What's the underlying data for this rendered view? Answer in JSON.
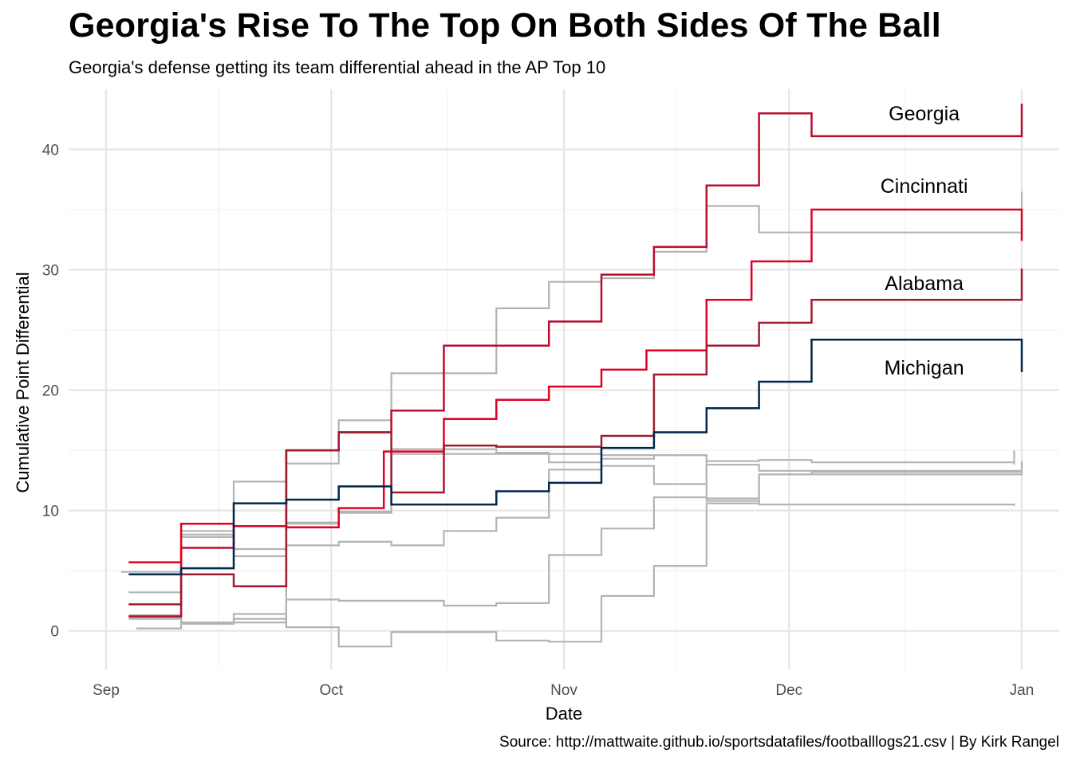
{
  "title": "Georgia's Rise To The Top On Both Sides Of The Ball",
  "subtitle": "Georgia's defense getting its team differential ahead in the AP Top 10",
  "caption": "Source: http://mattwaite.github.io/sportsdatafiles/footballlogs21.csv | By Kirk Rangel",
  "chart_data": {
    "type": "line",
    "step": true,
    "xlabel": "Date",
    "ylabel": "Cumulative Point Differential",
    "x_ticks": [
      {
        "date": "2021-09-01",
        "label": "Sep"
      },
      {
        "date": "2021-10-01",
        "label": "Oct"
      },
      {
        "date": "2021-11-01",
        "label": "Nov"
      },
      {
        "date": "2021-12-01",
        "label": "Dec"
      },
      {
        "date": "2022-01-01",
        "label": "Jan"
      }
    ],
    "y_ticks": [
      0,
      10,
      20,
      30,
      40
    ],
    "xlim": [
      "2021-08-27",
      "2022-01-06"
    ],
    "ylim": [
      -3.2,
      45
    ],
    "grid": true,
    "legend": "none",
    "highlight_series": [
      {
        "name": "Georgia",
        "color": "#BA0C2F",
        "dates": [
          "2021-09-04",
          "2021-09-11",
          "2021-09-18",
          "2021-09-25",
          "2021-10-02",
          "2021-10-09",
          "2021-10-16",
          "2021-10-30",
          "2021-11-06",
          "2021-11-13",
          "2021-11-20",
          "2021-11-27",
          "2021-12-04",
          "2022-01-01",
          "2022-01-01"
        ],
        "values": [
          1.2,
          6.9,
          8.7,
          15.0,
          16.5,
          18.3,
          23.7,
          25.7,
          29.6,
          31.9,
          37.0,
          43.0,
          41.1,
          41.1,
          43.8
        ]
      },
      {
        "name": "Cincinnati",
        "color": "#E00122",
        "dates": [
          "2021-09-04",
          "2021-09-11",
          "2021-09-18",
          "2021-09-25",
          "2021-10-02",
          "2021-10-08",
          "2021-10-16",
          "2021-10-23",
          "2021-10-30",
          "2021-11-06",
          "2021-11-12",
          "2021-11-20",
          "2021-11-26",
          "2021-12-04",
          "2022-01-01",
          "2022-01-01"
        ],
        "values": [
          5.7,
          8.9,
          8.7,
          8.6,
          10.2,
          14.9,
          17.6,
          19.2,
          20.3,
          21.7,
          23.3,
          27.5,
          30.7,
          35.0,
          35.0,
          32.4
        ]
      },
      {
        "name": "Alabama",
        "color": "#9E1B32",
        "dates": [
          "2021-09-04",
          "2021-09-11",
          "2021-09-18",
          "2021-09-25",
          "2021-10-02",
          "2021-10-09",
          "2021-10-16",
          "2021-10-23",
          "2021-11-06",
          "2021-11-13",
          "2021-11-20",
          "2021-11-27",
          "2021-12-04",
          "2022-01-01",
          "2022-01-01"
        ],
        "values": [
          2.2,
          4.7,
          3.7,
          15.0,
          16.5,
          11.5,
          15.4,
          15.3,
          16.2,
          21.3,
          23.7,
          25.6,
          27.5,
          27.5,
          30.1
        ]
      },
      {
        "name": "Michigan",
        "color": "#00274C",
        "dates": [
          "2021-09-04",
          "2021-09-11",
          "2021-09-18",
          "2021-09-25",
          "2021-10-02",
          "2021-10-09",
          "2021-10-23",
          "2021-10-30",
          "2021-11-06",
          "2021-11-13",
          "2021-11-20",
          "2021-11-27",
          "2021-12-04",
          "2022-01-01",
          "2022-01-01"
        ],
        "values": [
          4.7,
          5.2,
          10.6,
          10.9,
          12.0,
          10.5,
          11.6,
          12.3,
          15.2,
          16.5,
          18.5,
          20.7,
          24.2,
          24.2,
          21.5
        ]
      }
    ],
    "other_series_color": "#b3b3b3",
    "other_series": [
      {
        "dates": [
          "2021-09-04",
          "2021-09-11",
          "2021-09-18",
          "2021-09-25",
          "2021-10-02",
          "2021-10-09",
          "2021-10-16",
          "2021-10-23",
          "2021-10-30",
          "2021-11-06",
          "2021-11-13",
          "2021-11-20",
          "2021-11-27",
          "2022-01-01",
          "2022-01-01"
        ],
        "values": [
          1.0,
          8.0,
          12.4,
          13.9,
          17.5,
          21.4,
          21.4,
          26.8,
          29.0,
          29.3,
          31.5,
          35.3,
          33.1,
          33.1,
          36.5
        ]
      },
      {
        "dates": [
          "2021-09-03",
          "2021-09-11",
          "2021-09-18",
          "2021-09-25",
          "2021-10-02",
          "2021-10-09",
          "2021-10-16",
          "2021-10-23",
          "2021-10-30",
          "2021-11-06",
          "2021-11-13",
          "2021-11-20",
          "2021-11-27",
          "2021-12-04",
          "2021-12-31",
          "2021-12-31"
        ],
        "values": [
          4.9,
          7.8,
          6.8,
          8.9,
          9.9,
          15.1,
          15.1,
          14.8,
          14.0,
          14.3,
          14.6,
          14.1,
          14.2,
          14.0,
          13.8,
          15.0
        ]
      },
      {
        "dates": [
          "2021-09-04",
          "2021-09-11",
          "2021-09-18",
          "2021-09-25",
          "2021-10-02",
          "2021-10-09",
          "2021-10-16",
          "2021-10-23",
          "2021-10-30",
          "2021-11-06",
          "2021-11-13",
          "2021-11-20",
          "2021-11-27",
          "2022-01-01",
          "2022-01-01"
        ],
        "values": [
          3.2,
          8.3,
          6.2,
          7.1,
          7.4,
          7.1,
          8.3,
          9.4,
          13.4,
          13.7,
          12.2,
          13.8,
          13.3,
          13.3,
          14.1
        ]
      },
      {
        "dates": [
          "2021-09-05",
          "2021-09-11",
          "2021-09-18",
          "2021-09-25",
          "2021-10-02",
          "2021-10-09",
          "2021-10-16",
          "2021-10-23",
          "2021-10-30",
          "2021-11-06",
          "2021-11-13",
          "2021-11-20",
          "2021-11-27",
          "2022-01-01",
          "2022-01-01"
        ],
        "values": [
          0.2,
          0.6,
          1.0,
          2.6,
          2.5,
          2.5,
          2.1,
          2.3,
          6.3,
          8.5,
          11.1,
          11.0,
          13.0,
          13.0,
          12.9
        ]
      },
      {
        "dates": [
          "2021-09-04",
          "2021-09-11",
          "2021-09-18",
          "2021-09-25",
          "2021-10-02",
          "2021-10-09",
          "2021-10-23",
          "2021-10-30",
          "2021-11-06",
          "2021-11-13",
          "2021-11-20",
          "2021-11-27",
          "2021-12-04",
          "2022-01-01",
          "2022-01-01"
        ],
        "values": [
          1.3,
          0.6,
          1.4,
          0.3,
          -1.3,
          -0.1,
          -0.8,
          -0.9,
          2.9,
          5.4,
          10.6,
          13.0,
          13.2,
          13.2,
          13.0
        ]
      },
      {
        "dates": [
          "2021-09-04",
          "2021-09-11",
          "2021-09-18",
          "2021-09-25",
          "2021-10-02",
          "2021-10-09",
          "2021-10-16",
          "2021-10-23",
          "2021-10-30",
          "2021-11-06",
          "2021-11-13",
          "2021-11-20",
          "2021-11-27",
          "2021-12-31"
        ],
        "values": [
          1.1,
          0.7,
          0.7,
          9.0,
          9.8,
          14.7,
          14.7,
          14.7,
          14.7,
          14.6,
          14.6,
          10.8,
          10.5,
          10.4
        ]
      }
    ],
    "annotations": [
      {
        "text": "Georgia",
        "date": "2021-12-19",
        "value": 43.0
      },
      {
        "text": "Cincinnati",
        "date": "2021-12-19",
        "value": 37.0
      },
      {
        "text": "Alabama",
        "date": "2021-12-19",
        "value": 28.9
      },
      {
        "text": "Michigan",
        "date": "2021-12-19",
        "value": 21.9
      }
    ]
  }
}
